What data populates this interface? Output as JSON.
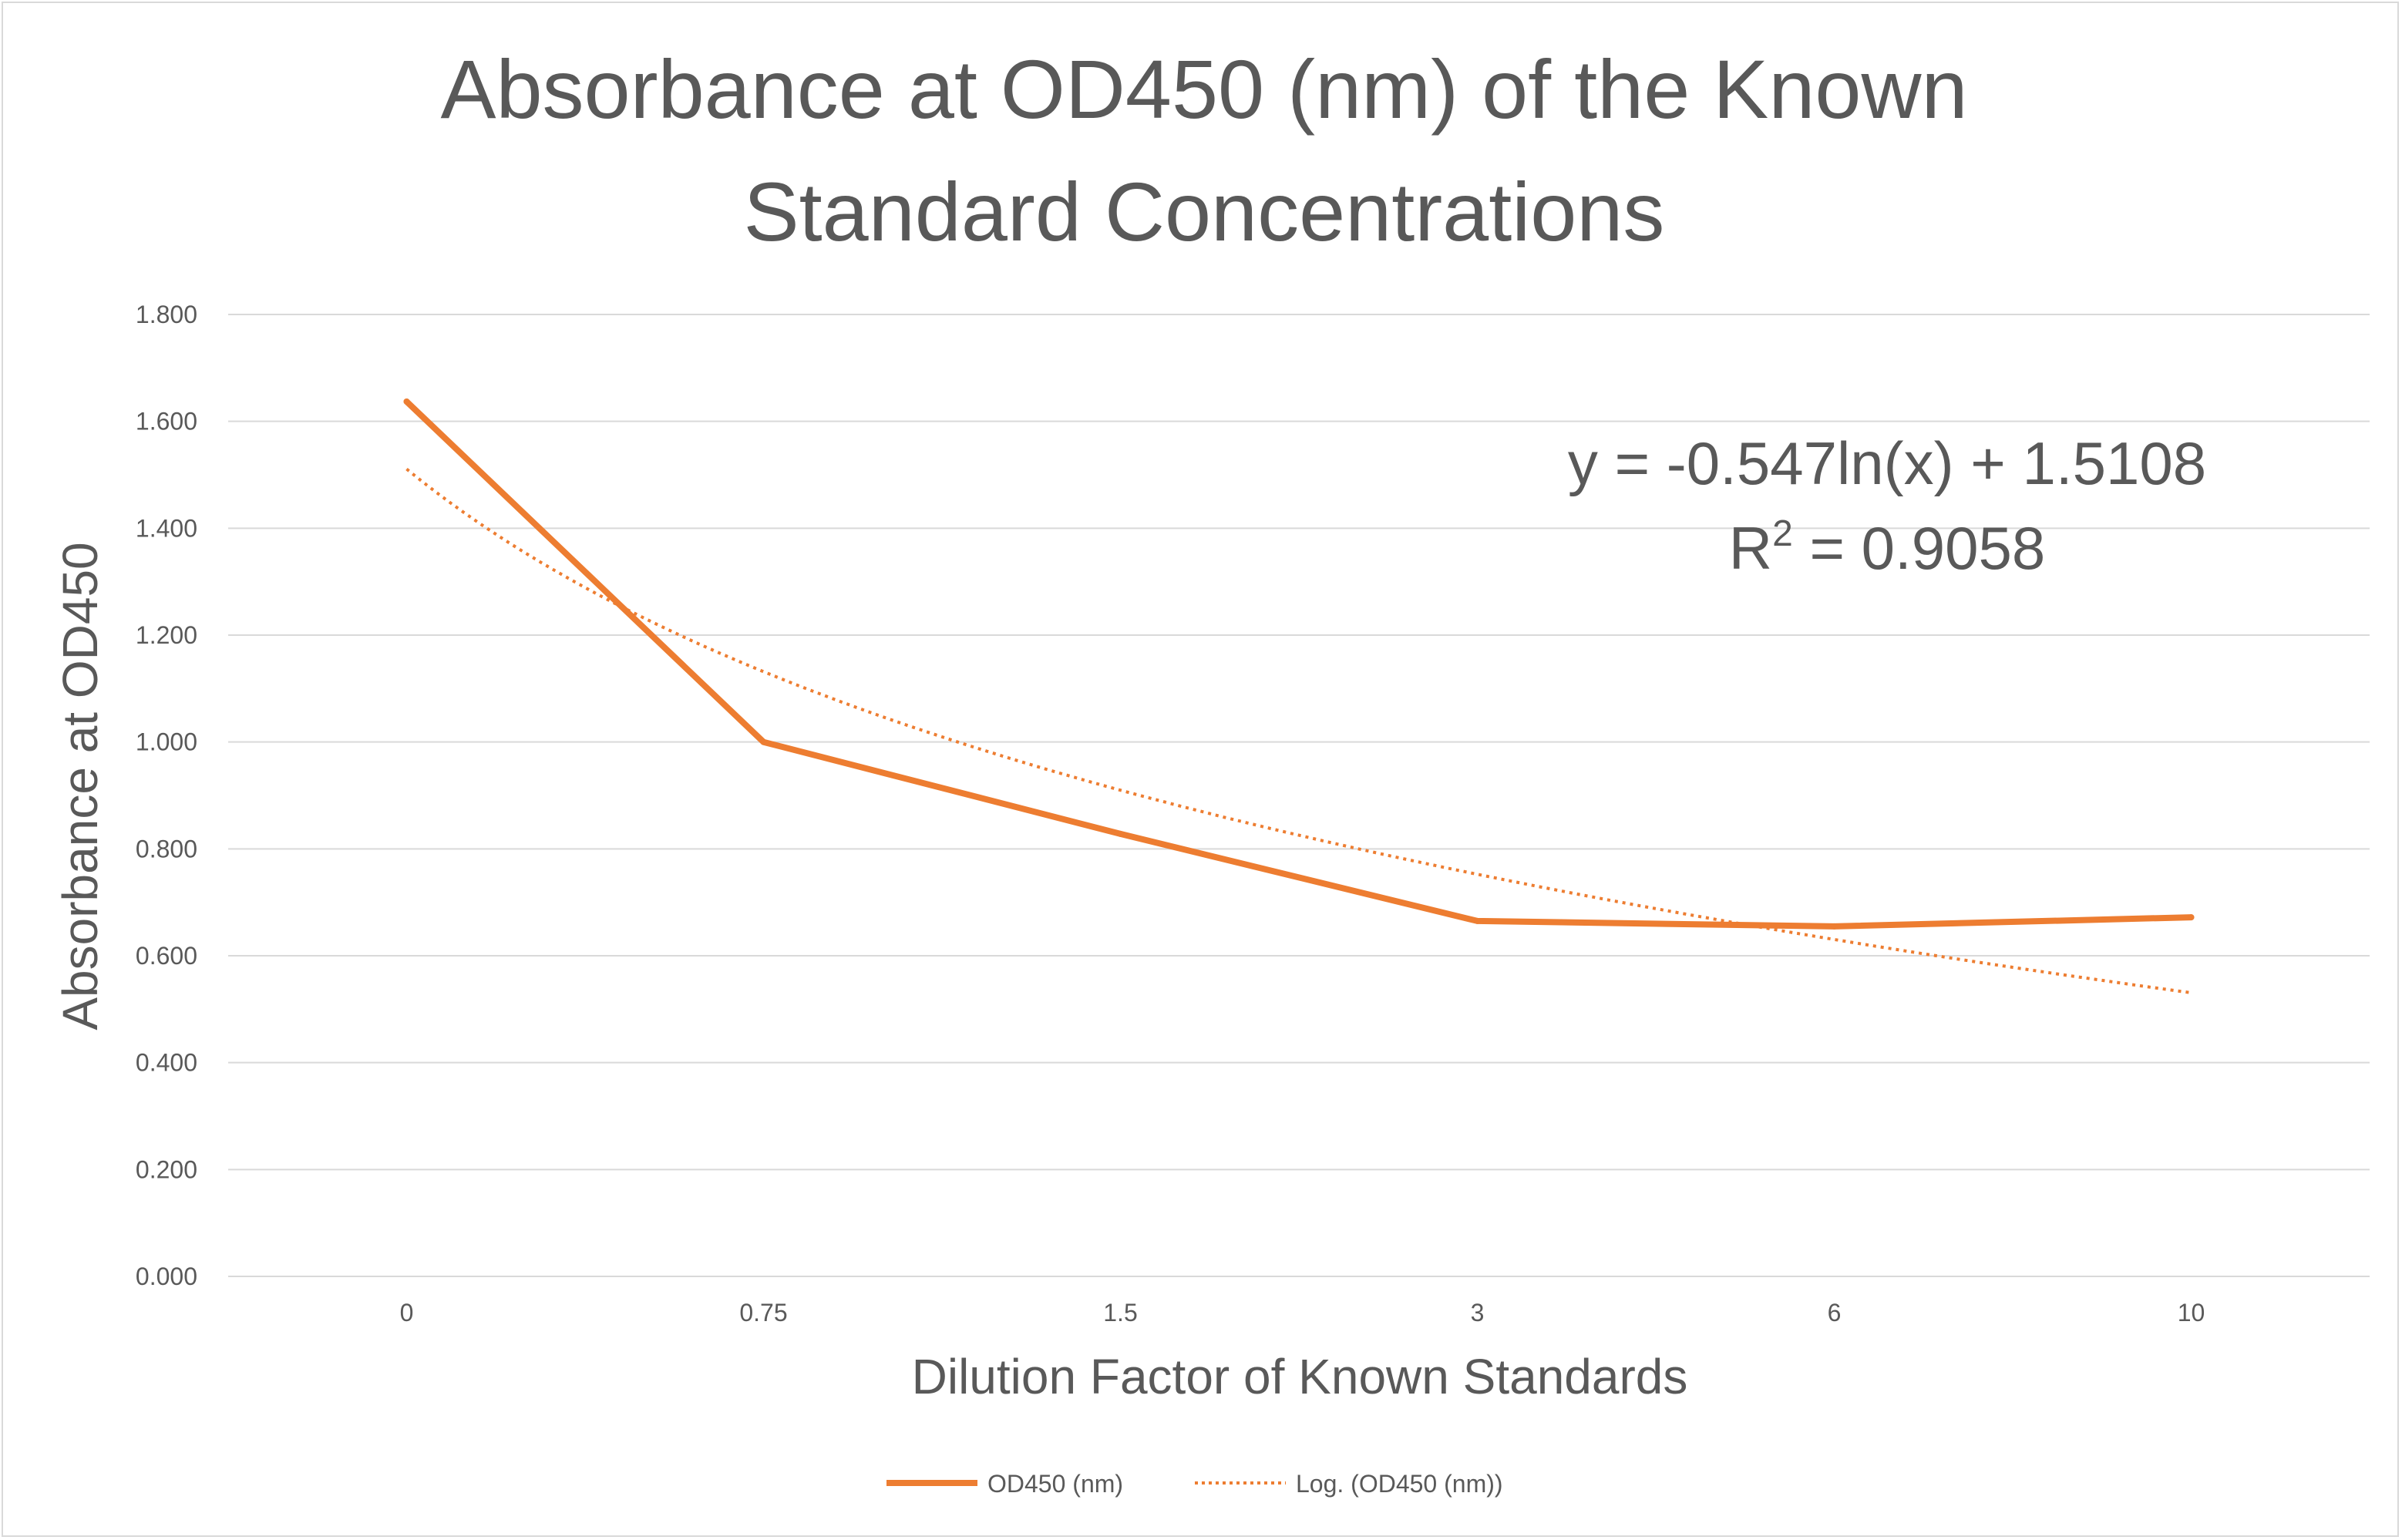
{
  "chart_data": {
    "type": "line",
    "title_lines": [
      "Absorbance at OD450 (nm) of the Known",
      "Standard Concentrations"
    ],
    "xlabel": "Dilution Factor of Known Standards",
    "ylabel": "Absorbance at OD450",
    "categories": [
      "0",
      "0.75",
      "1.5",
      "3",
      "6",
      "10"
    ],
    "ylim": [
      0,
      1.8
    ],
    "yticks": [
      "0.000",
      "0.200",
      "0.400",
      "0.600",
      "0.800",
      "1.000",
      "1.200",
      "1.400",
      "1.600",
      "1.800"
    ],
    "grid": true,
    "legend_position": "bottom",
    "series": [
      {
        "name": "OD450 (nm)",
        "values": [
          1.637,
          1.0,
          0.828,
          0.665,
          0.655,
          0.672
        ],
        "color": "#ed7d31",
        "style": "solid"
      }
    ],
    "trendline": {
      "name": "Log. (OD450 (nm))",
      "type": "logarithmic",
      "slope": -0.547,
      "intercept": 1.5108,
      "color": "#ed7d31",
      "style": "dotted",
      "equation": "y = -0.547ln(x) + 1.5108",
      "r2_prefix": "R",
      "r2_sup": "2",
      "r2_value": " = 0.9058"
    }
  }
}
